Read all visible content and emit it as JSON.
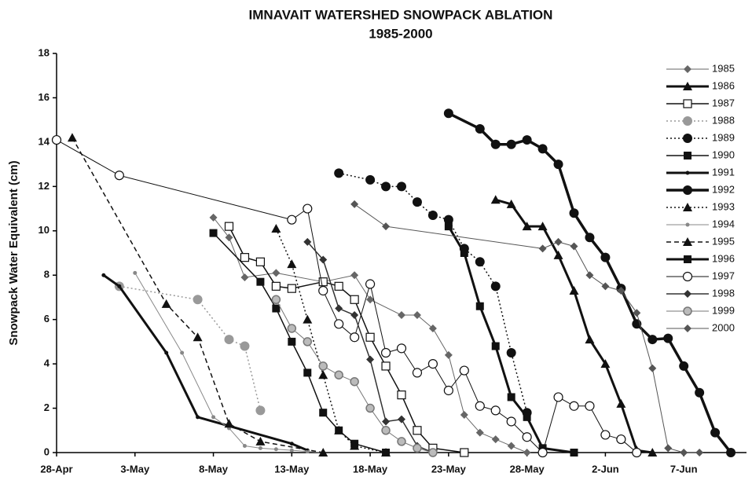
{
  "chart_data": {
    "type": "line",
    "title": "IMNAVAIT WATERSHED SNOWPACK ABLATION",
    "subtitle": "1985-2000",
    "y_label": "Snowpack Water Equivalent (cm)",
    "xlim": [
      "28-Apr",
      "11-Jun"
    ],
    "xticks": [
      "28-Apr",
      "3-May",
      "8-May",
      "13-May",
      "18-May",
      "23-May",
      "28-May",
      "2-Jun",
      "7-Jun"
    ],
    "ylim": [
      0,
      18
    ],
    "yticks": [
      0,
      2,
      4,
      6,
      8,
      10,
      12,
      14,
      16,
      18
    ],
    "grid": false,
    "series": [
      {
        "name": "1985",
        "color": "#666666",
        "marker": "diamond",
        "dash": "solid",
        "width": 1,
        "x": [
          "8-May",
          "9-May",
          "10-May",
          "12-May",
          "15-May",
          "17-May",
          "18-May",
          "20-May",
          "21-May",
          "22-May",
          "23-May",
          "24-May",
          "25-May",
          "26-May",
          "27-May",
          "28-May"
        ],
        "values": [
          10.6,
          9.7,
          7.9,
          8.1,
          7.7,
          8.0,
          6.9,
          6.2,
          6.2,
          5.6,
          4.4,
          1.7,
          0.9,
          0.6,
          0.3,
          0
        ]
      },
      {
        "name": "1986",
        "color": "#111111",
        "marker": "triangle",
        "dash": "solid",
        "width": 3,
        "x": [
          "26-May",
          "27-May",
          "28-May",
          "29-May",
          "30-May",
          "31-May",
          "1-Jun",
          "2-Jun",
          "3-Jun",
          "4-Jun",
          "5-Jun"
        ],
        "values": [
          11.4,
          11.2,
          10.2,
          10.2,
          8.9,
          7.3,
          5.1,
          4.0,
          2.2,
          0.1,
          0
        ]
      },
      {
        "name": "1987",
        "color": "#111111",
        "marker": "square-open",
        "dash": "solid",
        "width": 1.5,
        "x": [
          "9-May",
          "10-May",
          "11-May",
          "12-May",
          "13-May",
          "15-May",
          "16-May",
          "17-May",
          "18-May",
          "19-May",
          "20-May",
          "21-May",
          "22-May",
          "24-May"
        ],
        "values": [
          10.2,
          8.8,
          8.6,
          7.5,
          7.4,
          7.7,
          7.5,
          6.9,
          5.2,
          3.9,
          2.6,
          1.0,
          0.2,
          0
        ]
      },
      {
        "name": "1988",
        "color": "#999999",
        "marker": "circle",
        "dash": "dotted",
        "width": 1.5,
        "x": [
          "2-May",
          "7-May",
          "9-May",
          "10-May",
          "11-May"
        ],
        "values": [
          7.5,
          6.9,
          5.1,
          4.8,
          1.9
        ]
      },
      {
        "name": "1989",
        "color": "#111111",
        "marker": "circle",
        "dash": "dotted",
        "width": 1.5,
        "x": [
          "16-May",
          "18-May",
          "19-May",
          "20-May",
          "21-May",
          "22-May",
          "23-May",
          "24-May",
          "25-May",
          "26-May",
          "27-May",
          "28-May"
        ],
        "values": [
          12.6,
          12.3,
          12.0,
          12.0,
          11.3,
          10.7,
          10.5,
          9.2,
          8.6,
          7.5,
          4.5,
          1.8
        ]
      },
      {
        "name": "1990",
        "color": "#111111",
        "marker": "square",
        "dash": "solid",
        "width": 1.5,
        "x": [
          "8-May",
          "11-May",
          "12-May",
          "13-May",
          "14-May",
          "15-May",
          "16-May",
          "17-May",
          "19-May"
        ],
        "values": [
          9.9,
          7.7,
          6.5,
          5.0,
          3.6,
          1.8,
          1.0,
          0.4,
          0
        ]
      },
      {
        "name": "1991",
        "color": "#111111",
        "marker": "dot",
        "dash": "solid",
        "width": 3,
        "x": [
          "1-May",
          "2-May",
          "5-May",
          "7-May",
          "13-May",
          "14-May"
        ],
        "values": [
          8.0,
          7.5,
          4.5,
          1.6,
          0.4,
          0.1
        ]
      },
      {
        "name": "1992",
        "color": "#111111",
        "marker": "circle",
        "dash": "solid",
        "width": 3.5,
        "x": [
          "23-May",
          "25-May",
          "26-May",
          "27-May",
          "28-May",
          "29-May",
          "30-May",
          "31-May",
          "1-Jun",
          "2-Jun",
          "3-Jun",
          "4-Jun",
          "5-Jun",
          "6-Jun",
          "7-Jun",
          "8-Jun",
          "9-Jun",
          "10-Jun"
        ],
        "values": [
          15.3,
          14.6,
          13.9,
          13.9,
          14.1,
          13.7,
          13.0,
          10.8,
          9.7,
          8.8,
          7.4,
          5.8,
          5.1,
          5.15,
          3.9,
          2.7,
          0.9,
          0
        ]
      },
      {
        "name": "1993",
        "color": "#111111",
        "marker": "triangle",
        "dash": "dotted",
        "width": 1.5,
        "x": [
          "12-May",
          "13-May",
          "14-May",
          "15-May",
          "16-May",
          "17-May",
          "19-May"
        ],
        "values": [
          10.1,
          8.5,
          6.0,
          3.5,
          1.0,
          0.3,
          0
        ]
      },
      {
        "name": "1994",
        "color": "#888888",
        "marker": "dot",
        "dash": "solid",
        "width": 1,
        "x": [
          "3-May",
          "6-May",
          "8-May",
          "9-May",
          "10-May",
          "11-May",
          "12-May",
          "13-May",
          "14-May",
          "15-May"
        ],
        "values": [
          8.1,
          4.5,
          1.6,
          1.1,
          0.3,
          0.2,
          0.15,
          0.1,
          0.05,
          0
        ]
      },
      {
        "name": "1995",
        "color": "#111111",
        "marker": "triangle",
        "dash": "dashed",
        "width": 1.5,
        "x": [
          "29-Apr",
          "5-May",
          "7-May",
          "9-May",
          "11-May",
          "15-May"
        ],
        "values": [
          14.2,
          6.7,
          5.2,
          1.3,
          0.5,
          0
        ]
      },
      {
        "name": "1996",
        "color": "#111111",
        "marker": "square",
        "dash": "solid",
        "width": 3,
        "x": [
          "23-May",
          "24-May",
          "25-May",
          "26-May",
          "27-May",
          "28-May",
          "29-May",
          "31-May"
        ],
        "values": [
          10.2,
          9.0,
          6.6,
          4.8,
          2.5,
          1.6,
          0.2,
          0
        ]
      },
      {
        "name": "1997",
        "color": "#111111",
        "marker": "circle-open",
        "dash": "solid",
        "width": 1,
        "x": [
          "28-Apr",
          "2-May",
          "13-May",
          "14-May",
          "15-May",
          "16-May",
          "17-May",
          "18-May",
          "19-May",
          "20-May",
          "21-May",
          "22-May",
          "23-May",
          "24-May",
          "25-May",
          "26-May",
          "27-May",
          "28-May",
          "29-May",
          "30-May",
          "31-May",
          "1-Jun",
          "2-Jun",
          "3-Jun",
          "4-Jun"
        ],
        "values": [
          14.1,
          12.5,
          10.5,
          11.0,
          7.3,
          5.8,
          5.2,
          7.6,
          4.5,
          4.7,
          3.6,
          4.0,
          2.8,
          3.7,
          2.1,
          1.9,
          1.4,
          0.7,
          0,
          2.5,
          2.1,
          2.1,
          0.8,
          0.6,
          0
        ]
      },
      {
        "name": "1998",
        "color": "#333333",
        "marker": "diamond",
        "dash": "solid",
        "width": 1.5,
        "x": [
          "14-May",
          "15-May",
          "16-May",
          "17-May",
          "18-May",
          "19-May",
          "20-May",
          "21-May",
          "22-May"
        ],
        "values": [
          9.5,
          8.7,
          6.5,
          6.2,
          4.2,
          1.4,
          1.5,
          0.3,
          0
        ]
      },
      {
        "name": "1999",
        "color": "#777777",
        "marker": "circle-gray",
        "dash": "solid",
        "width": 1,
        "x": [
          "12-May",
          "13-May",
          "14-May",
          "15-May",
          "16-May",
          "17-May",
          "18-May",
          "19-May",
          "20-May",
          "21-May",
          "22-May"
        ],
        "values": [
          6.9,
          5.6,
          5.0,
          3.9,
          3.5,
          3.2,
          2.0,
          1.0,
          0.5,
          0.2,
          0
        ]
      },
      {
        "name": "2000",
        "color": "#555555",
        "marker": "diamond",
        "dash": "solid",
        "width": 1,
        "x": [
          "17-May",
          "19-May",
          "29-May",
          "30-May",
          "31-May",
          "1-Jun",
          "2-Jun",
          "3-Jun",
          "4-Jun",
          "5-Jun",
          "6-Jun",
          "7-Jun",
          "8-Jun"
        ],
        "values": [
          11.2,
          10.2,
          9.2,
          9.5,
          9.3,
          8.0,
          7.5,
          7.3,
          6.3,
          3.8,
          0.2,
          0,
          0
        ]
      }
    ]
  }
}
